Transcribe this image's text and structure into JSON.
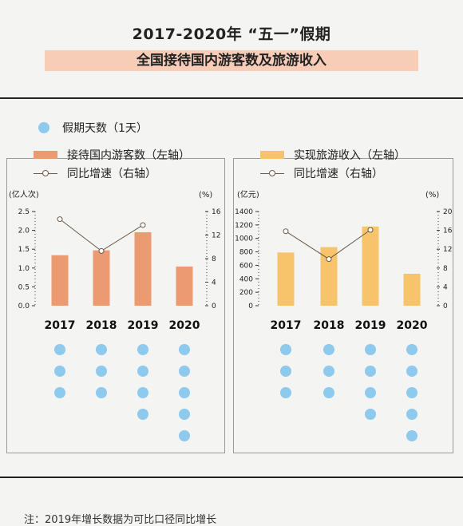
{
  "title": {
    "line1": "2017-2020年 “五一”假期",
    "line2": "全国接待国内游客数及旅游收入"
  },
  "legend": {
    "dot": "假期天数（1天）",
    "left_bar": "接待国内游客数（左轴）",
    "left_line": "同比增速（右轴）",
    "right_bar": "实现旅游收入（左轴）",
    "right_line": "同比增速（右轴）"
  },
  "footnote": "注：2019年增长数据为可比口径同比增长",
  "colors": {
    "bar_left": "#eb9a72",
    "bar_right": "#f7c46c",
    "dot": "#8ec9ee",
    "line": "#6b5a4a"
  },
  "chart_data": [
    {
      "type": "bar",
      "categories": [
        "2017",
        "2018",
        "2019",
        "2020"
      ],
      "ylabel": "(亿人次)",
      "ylabel_right": "(%)",
      "ylim": [
        0,
        2.5
      ],
      "yticks": [
        "2.5",
        "2.0",
        "1.5",
        "1.0",
        "0.5",
        "0.0"
      ],
      "ylim_right": [
        0,
        16
      ],
      "yticks_right": [
        "16",
        "12",
        "8",
        "4",
        "0"
      ],
      "series": [
        {
          "name": "接待国内游客数（左轴）",
          "type": "bar",
          "values": [
            1.34,
            1.47,
            1.95,
            1.04
          ]
        },
        {
          "name": "同比增速（右轴）",
          "type": "line",
          "values": [
            14.7,
            9.3,
            13.7,
            null
          ]
        }
      ],
      "holiday_days": [
        3,
        3,
        4,
        5
      ]
    },
    {
      "type": "bar",
      "categories": [
        "2017",
        "2018",
        "2019",
        "2020"
      ],
      "ylabel": "(亿元)",
      "ylabel_right": "(%)",
      "ylim": [
        0,
        1400
      ],
      "yticks": [
        "1400",
        "1200",
        "1000",
        "800",
        "600",
        "400",
        "200",
        "0"
      ],
      "ylim_right": [
        0,
        20
      ],
      "yticks_right": [
        "20",
        "16",
        "12",
        "8",
        "4",
        "0"
      ],
      "series": [
        {
          "name": "实现旅游收入（左轴）",
          "type": "bar",
          "values": [
            791,
            871,
            1177,
            475
          ]
        },
        {
          "name": "同比增速（右轴）",
          "type": "line",
          "values": [
            15.8,
            9.9,
            16.1,
            null
          ]
        }
      ],
      "holiday_days": [
        3,
        3,
        4,
        5
      ]
    }
  ]
}
